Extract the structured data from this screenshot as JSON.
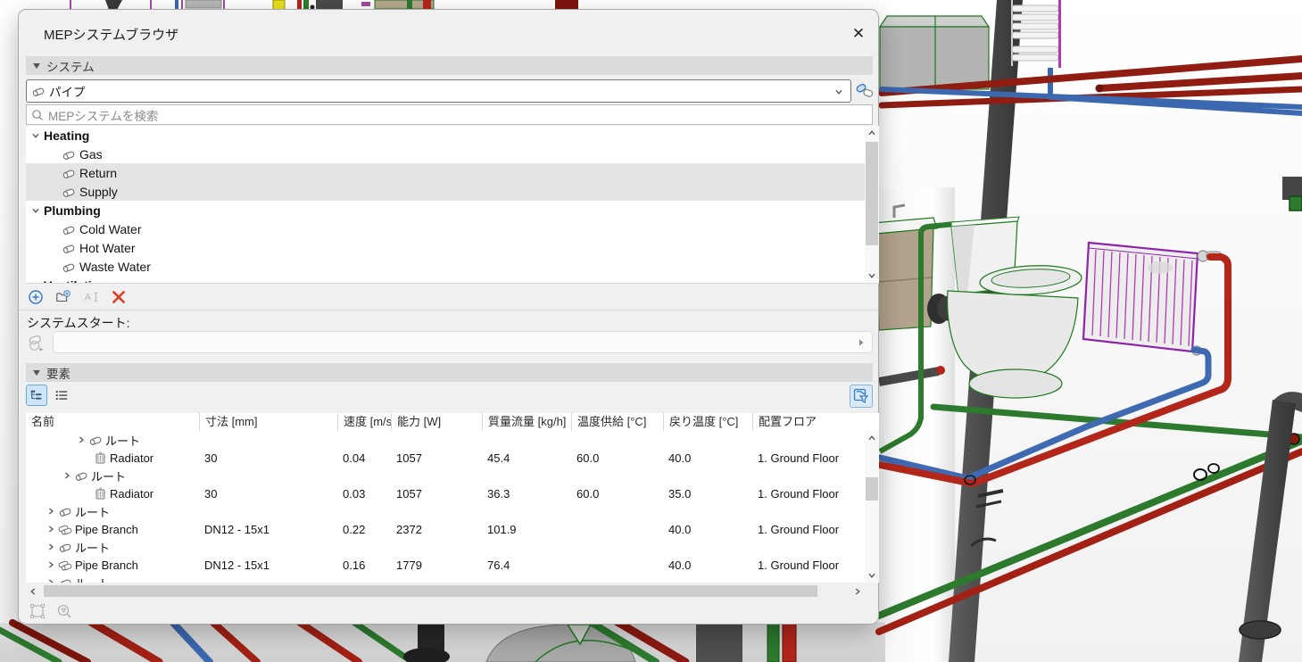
{
  "dialog": {
    "title": "MEPシステムブラウザ",
    "close_glyph": "✕",
    "system_section": {
      "header": "システム",
      "system_type_selected": "パイプ",
      "search_placeholder": "MEPシステムを検索"
    },
    "system_tree": {
      "groups": [
        {
          "label": "Heating",
          "items": [
            {
              "label": "Gas",
              "selected": false
            },
            {
              "label": "Return",
              "selected": true
            },
            {
              "label": "Supply",
              "selected": true
            }
          ]
        },
        {
          "label": "Plumbing",
          "items": [
            {
              "label": "Cold Water",
              "selected": false
            },
            {
              "label": "Hot Water",
              "selected": false
            },
            {
              "label": "Waste Water",
              "selected": false
            }
          ]
        },
        {
          "label": "Ventilation",
          "items": []
        }
      ]
    },
    "tree_toolbar": {
      "buttons": [
        {
          "name": "add-system",
          "disabled": false
        },
        {
          "name": "add-folder",
          "disabled": false
        },
        {
          "name": "rename",
          "disabled": true
        },
        {
          "name": "delete",
          "disabled": false
        }
      ]
    },
    "system_start": {
      "label": "システムスタート:",
      "value": ""
    },
    "elements_section": {
      "header": "要素",
      "columns": [
        "名前",
        "寸法 [mm]",
        "速度 [m/s]",
        "能力 [W]",
        "質量流量 [kg/h]",
        "温度供給 [°C]",
        "戻り温度  [°C]",
        "配置フロア"
      ],
      "rows": [
        {
          "name": "ルート",
          "icon": "pipe",
          "pad": 57,
          "expandable": true,
          "size": "",
          "velocity": "",
          "capacity": "",
          "flow": "",
          "supply_temp": "",
          "return_temp": "",
          "floor": ""
        },
        {
          "name": "Radiator",
          "icon": "radiator",
          "pad": 75,
          "expandable": false,
          "size": "30",
          "velocity": "0.04",
          "capacity": "1057",
          "flow": "45.4",
          "supply_temp": "60.0",
          "return_temp": "40.0",
          "floor": "1. Ground Floor"
        },
        {
          "name": "ルート",
          "icon": "pipe",
          "pad": 41,
          "expandable": true,
          "size": "",
          "velocity": "",
          "capacity": "",
          "flow": "",
          "supply_temp": "",
          "return_temp": "",
          "floor": ""
        },
        {
          "name": "Radiator",
          "icon": "radiator",
          "pad": 75,
          "expandable": false,
          "size": "30",
          "velocity": "0.03",
          "capacity": "1057",
          "flow": "36.3",
          "supply_temp": "60.0",
          "return_temp": "35.0",
          "floor": "1. Ground Floor"
        },
        {
          "name": "ルート",
          "icon": "pipe",
          "pad": 23,
          "expandable": true,
          "size": "",
          "velocity": "",
          "capacity": "",
          "flow": "",
          "supply_temp": "",
          "return_temp": "",
          "floor": ""
        },
        {
          "name": "Pipe Branch",
          "icon": "pipe-branch",
          "pad": 23,
          "expandable": true,
          "size": "DN12 - 15x1",
          "velocity": "0.22",
          "capacity": "2372",
          "flow": "101.9",
          "supply_temp": "",
          "return_temp": "40.0",
          "floor": "1. Ground Floor"
        },
        {
          "name": "ルート",
          "icon": "pipe",
          "pad": 23,
          "expandable": true,
          "size": "",
          "velocity": "",
          "capacity": "",
          "flow": "",
          "supply_temp": "",
          "return_temp": "",
          "floor": ""
        },
        {
          "name": "Pipe Branch",
          "icon": "pipe-branch",
          "pad": 23,
          "expandable": true,
          "size": "DN12 - 15x1",
          "velocity": "0.16",
          "capacity": "1779",
          "flow": "76.4",
          "supply_temp": "",
          "return_temp": "40.0",
          "floor": "1. Ground Floor"
        },
        {
          "name": "ルート",
          "icon": "pipe",
          "pad": 23,
          "expandable": true,
          "size": "",
          "velocity": "",
          "capacity": "",
          "flow": "",
          "supply_temp": "",
          "return_temp": "",
          "floor": ""
        }
      ]
    }
  },
  "colors": {
    "accent_blue": "#2f7ac3",
    "delete_red": "#e0391f",
    "selection_blue": "#cde6f7",
    "header_gray": "#dcdcdc",
    "pipe_dark_red": "#8f1d12",
    "pipe_red": "#a32014",
    "pipe_green": "#2d7a2f",
    "pipe_blue": "#3c68b0",
    "pipe_gray": "#4b4b4b",
    "radiator_magenta": "#a020a8"
  }
}
